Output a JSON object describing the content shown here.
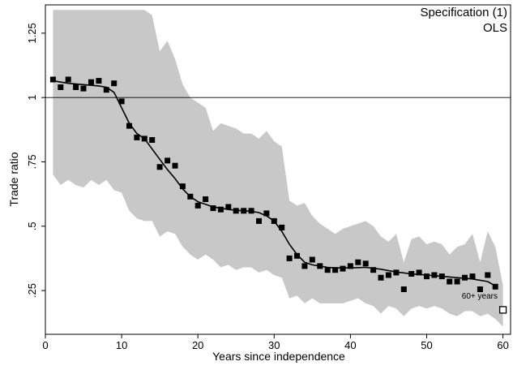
{
  "chart_data": {
    "type": "scatter",
    "xlabel": "Years since independence",
    "ylabel": "Trade ratio",
    "xlim": [
      0,
      61
    ],
    "ylim": [
      0.08,
      1.36
    ],
    "xticks": [
      {
        "value": 0,
        "label": "0"
      },
      {
        "value": 10,
        "label": "10"
      },
      {
        "value": 20,
        "label": "20"
      },
      {
        "value": 30,
        "label": "30"
      },
      {
        "value": 40,
        "label": "40"
      },
      {
        "value": 50,
        "label": "50"
      },
      {
        "value": 60,
        "label": "60"
      }
    ],
    "yticks": [
      {
        "value": 0.25,
        "label": ".25"
      },
      {
        "value": 0.5,
        "label": ".5"
      },
      {
        "value": 0.75,
        "label": ".75"
      },
      {
        "value": 1,
        "label": "1"
      },
      {
        "value": 1.25,
        "label": "1.25"
      }
    ],
    "annotation_lines": [
      "Specification (1)",
      "OLS"
    ],
    "reference_line": {
      "y": 1
    },
    "legend": {
      "label": "60+ years",
      "position": "bottom-right",
      "marker": "hollow-square"
    },
    "outlier_point": {
      "x": 60,
      "y": 0.175
    },
    "colors": {
      "band": "#c8c8c8",
      "points": "#000000",
      "line": "#000000"
    },
    "points": {
      "x": [
        1,
        2,
        3,
        4,
        5,
        6,
        7,
        8,
        9,
        10,
        11,
        12,
        13,
        14,
        15,
        16,
        17,
        18,
        19,
        20,
        21,
        22,
        23,
        24,
        25,
        26,
        27,
        28,
        29,
        30,
        31,
        32,
        33,
        34,
        35,
        36,
        37,
        38,
        39,
        40,
        41,
        42,
        43,
        44,
        45,
        46,
        47,
        48,
        49,
        50,
        51,
        52,
        53,
        54,
        55,
        56,
        57,
        58,
        59
      ],
      "y": [
        1.07,
        1.04,
        1.07,
        1.04,
        1.035,
        1.06,
        1.065,
        1.03,
        1.055,
        0.985,
        0.89,
        0.845,
        0.84,
        0.835,
        0.73,
        0.755,
        0.735,
        0.655,
        0.615,
        0.58,
        0.605,
        0.57,
        0.565,
        0.575,
        0.56,
        0.56,
        0.56,
        0.52,
        0.55,
        0.52,
        0.495,
        0.375,
        0.385,
        0.345,
        0.37,
        0.345,
        0.33,
        0.33,
        0.335,
        0.345,
        0.36,
        0.355,
        0.33,
        0.3,
        0.31,
        0.32,
        0.255,
        0.315,
        0.32,
        0.305,
        0.31,
        0.305,
        0.285,
        0.285,
        0.3,
        0.305,
        0.255,
        0.31,
        0.265
      ]
    },
    "smooth_line": {
      "x": [
        1,
        3,
        5,
        7,
        8,
        9,
        10,
        11,
        12,
        13,
        14,
        15,
        16,
        17,
        18,
        19,
        20,
        21,
        22,
        23,
        24,
        25,
        26,
        27,
        28,
        29,
        30,
        31,
        32,
        33,
        34,
        35,
        36,
        37,
        38,
        40,
        42,
        44,
        46,
        48,
        50,
        52,
        54,
        56,
        58,
        59
      ],
      "y": [
        1.065,
        1.055,
        1.05,
        1.045,
        1.04,
        1.02,
        0.96,
        0.9,
        0.86,
        0.84,
        0.8,
        0.76,
        0.72,
        0.685,
        0.645,
        0.615,
        0.595,
        0.585,
        0.575,
        0.57,
        0.565,
        0.562,
        0.56,
        0.558,
        0.553,
        0.54,
        0.52,
        0.48,
        0.43,
        0.39,
        0.36,
        0.35,
        0.345,
        0.34,
        0.338,
        0.338,
        0.34,
        0.333,
        0.322,
        0.315,
        0.31,
        0.305,
        0.3,
        0.295,
        0.285,
        0.268
      ]
    },
    "confidence_band": {
      "x": [
        1,
        2,
        3,
        4,
        5,
        6,
        7,
        8,
        9,
        10,
        11,
        12,
        13,
        14,
        15,
        16,
        17,
        18,
        19,
        20,
        21,
        22,
        23,
        24,
        25,
        26,
        27,
        28,
        29,
        30,
        31,
        32,
        33,
        34,
        35,
        36,
        37,
        38,
        39,
        40,
        41,
        42,
        43,
        44,
        45,
        46,
        47,
        48,
        49,
        50,
        51,
        52,
        53,
        54,
        55,
        56,
        57,
        58,
        59,
        60
      ],
      "upper": [
        1.34,
        1.34,
        1.34,
        1.34,
        1.34,
        1.34,
        1.34,
        1.34,
        1.34,
        1.34,
        1.34,
        1.34,
        1.34,
        1.32,
        1.18,
        1.22,
        1.15,
        1.05,
        1.0,
        0.98,
        0.96,
        0.87,
        0.9,
        0.89,
        0.88,
        0.86,
        0.86,
        0.84,
        0.87,
        0.83,
        0.81,
        0.6,
        0.58,
        0.59,
        0.54,
        0.51,
        0.49,
        0.47,
        0.49,
        0.5,
        0.51,
        0.52,
        0.5,
        0.46,
        0.44,
        0.47,
        0.36,
        0.45,
        0.46,
        0.43,
        0.44,
        0.43,
        0.39,
        0.42,
        0.43,
        0.47,
        0.36,
        0.48,
        0.42,
        0.27
      ],
      "lower": [
        0.7,
        0.66,
        0.68,
        0.66,
        0.65,
        0.68,
        0.66,
        0.68,
        0.64,
        0.63,
        0.56,
        0.53,
        0.52,
        0.52,
        0.46,
        0.48,
        0.47,
        0.42,
        0.39,
        0.37,
        0.39,
        0.37,
        0.34,
        0.35,
        0.33,
        0.34,
        0.34,
        0.32,
        0.33,
        0.31,
        0.3,
        0.22,
        0.23,
        0.2,
        0.22,
        0.2,
        0.2,
        0.2,
        0.2,
        0.21,
        0.22,
        0.2,
        0.19,
        0.16,
        0.19,
        0.18,
        0.15,
        0.18,
        0.19,
        0.18,
        0.19,
        0.18,
        0.16,
        0.15,
        0.17,
        0.17,
        0.15,
        0.16,
        0.14,
        0.11
      ]
    }
  }
}
